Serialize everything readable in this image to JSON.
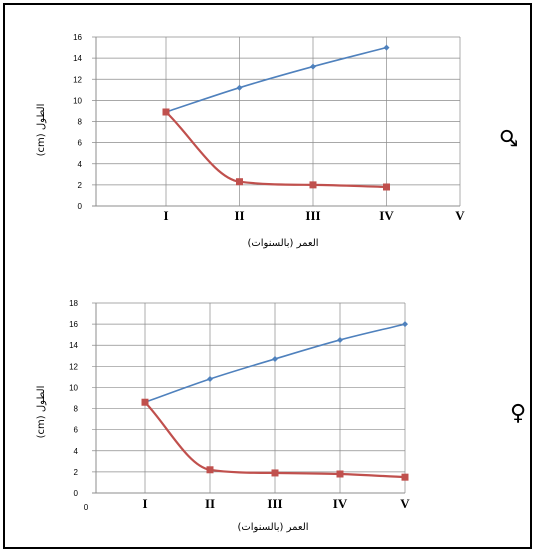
{
  "colors": {
    "blue": "#4F81BD",
    "red": "#C0504D",
    "grid": "#8C8C8C"
  },
  "charts": [
    {
      "symbol": "♂",
      "symbol_meaning": "male",
      "xlabel": "العمر (بالسنوات)",
      "ylabel": "الطول (cm)",
      "origin_label": "",
      "categories": [
        "I",
        "II",
        "III",
        "IV",
        "V"
      ],
      "y_ticks": [
        "0",
        "2",
        "4",
        "6",
        "8",
        "10",
        "12",
        "14",
        "16"
      ]
    },
    {
      "symbol": "♀",
      "symbol_meaning": "female",
      "xlabel": "العمر (بالسنوات)",
      "ylabel": "الطول (cm)",
      "origin_label": "0",
      "categories": [
        "I",
        "II",
        "III",
        "IV",
        "V"
      ],
      "y_ticks": [
        "0",
        "2",
        "4",
        "6",
        "8",
        "10",
        "12",
        "14",
        "16",
        "18"
      ]
    }
  ],
  "chart_data": [
    {
      "type": "line",
      "categories": [
        "I",
        "II",
        "III",
        "IV",
        "V"
      ],
      "ylim": [
        0,
        16
      ],
      "xlabel": "العمر (بالسنوات)",
      "ylabel": "الطول (cm)",
      "grid": true,
      "series": [
        {
          "color": "#4F81BD",
          "marker": "diamond",
          "values": [
            8.9,
            11.2,
            13.2,
            15.0,
            null
          ]
        },
        {
          "color": "#C0504D",
          "marker": "square",
          "values": [
            8.9,
            2.3,
            2.0,
            1.8,
            null
          ]
        }
      ]
    },
    {
      "type": "line",
      "categories": [
        "I",
        "II",
        "III",
        "IV",
        "V"
      ],
      "ylim": [
        0,
        18
      ],
      "xlabel": "العمر (بالسنوات)",
      "ylabel": "الطول (cm)",
      "grid": true,
      "series": [
        {
          "color": "#4F81BD",
          "marker": "diamond",
          "values": [
            8.6,
            10.8,
            12.7,
            14.5,
            16.0
          ]
        },
        {
          "color": "#C0504D",
          "marker": "square",
          "values": [
            8.6,
            2.2,
            1.9,
            1.8,
            1.5
          ]
        }
      ]
    }
  ]
}
